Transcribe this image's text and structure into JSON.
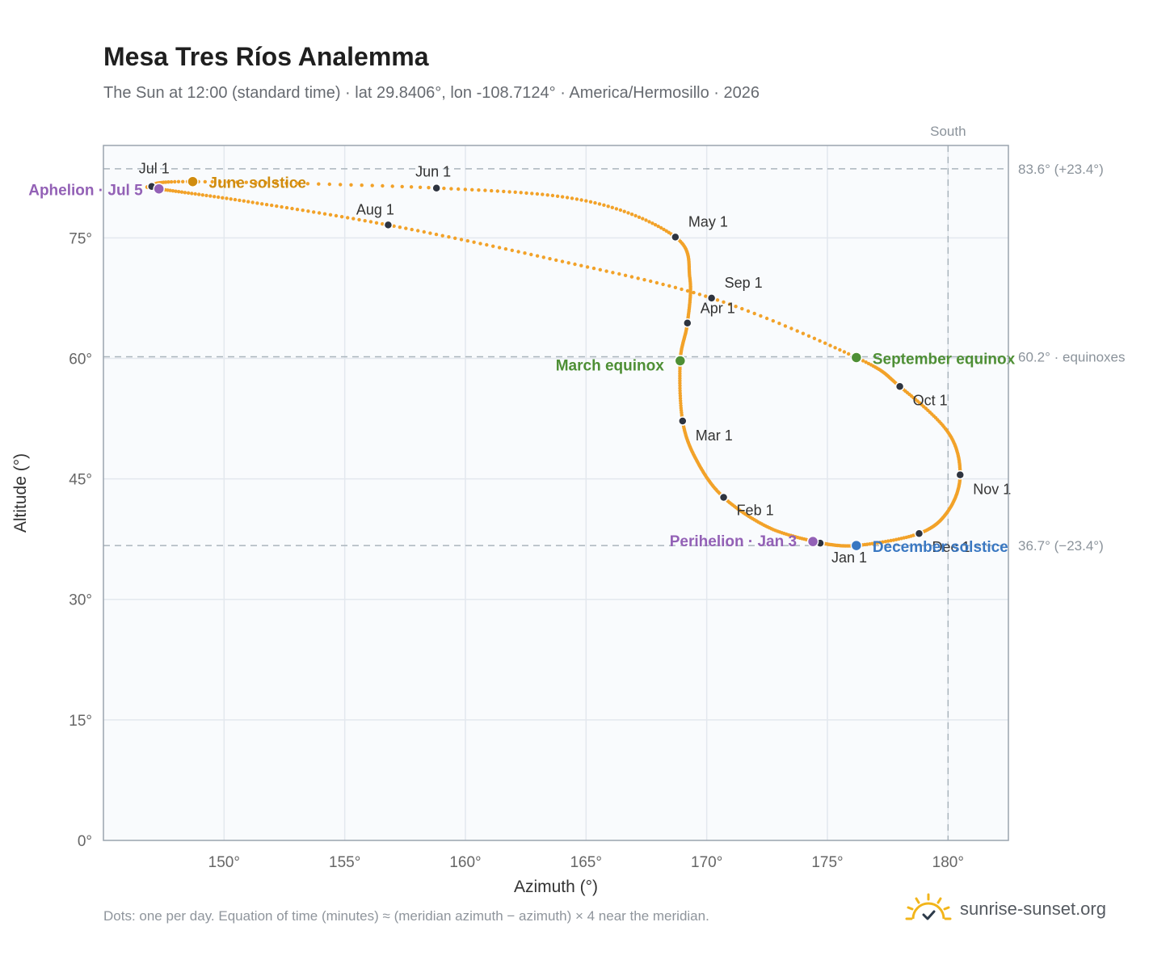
{
  "title": "Mesa Tres Ríos Analemma",
  "subtitle": "The Sun at 12:00 (standard time) · lat 29.8406°, lon -108.7124° · America/Hermosillo · 2026",
  "footnote": "Dots: one per day. Equation of time (minutes) ≈ (meridian azimuth − azimuth) × 4 near the meridian.",
  "brand": {
    "name": "sunrise-sunset.org",
    "icon": "sun-logo-icon"
  },
  "colors": {
    "curve": "#f2a229",
    "month_dot": "#2e3440",
    "equinox": "#4e8f35",
    "june_solstice": "#d08c0e",
    "december_solstice": "#3a78c2",
    "apsis": "#9361b6",
    "plot_bg": "#f9fbfd",
    "grid": "#e3e8ee",
    "ref_line": "#aab5bd"
  },
  "chart_data": {
    "type": "scatter",
    "xlabel": "Azimuth (°)",
    "ylabel": "Altitude (°)",
    "xlim": [
      145,
      182.5
    ],
    "ylim": [
      0,
      86.5
    ],
    "x_ticks": [
      {
        "value": 150,
        "label": "150°"
      },
      {
        "value": 155,
        "label": "155°"
      },
      {
        "value": 160,
        "label": "160°"
      },
      {
        "value": 165,
        "label": "165°"
      },
      {
        "value": 170,
        "label": "170°"
      },
      {
        "value": 175,
        "label": "175°"
      },
      {
        "value": 180,
        "label": "180°"
      }
    ],
    "y_ticks": [
      {
        "value": 0,
        "label": "0°"
      },
      {
        "value": 15,
        "label": "15°"
      },
      {
        "value": 30,
        "label": "30°"
      },
      {
        "value": 45,
        "label": "45°"
      },
      {
        "value": 60,
        "label": "60°"
      },
      {
        "value": 75,
        "label": "75°"
      }
    ],
    "grid": true,
    "meridian": {
      "azimuth": 180,
      "label": "South"
    },
    "reference_lines": [
      {
        "altitude": 83.6,
        "label": "83.6° (+23.4°)"
      },
      {
        "altitude": 60.2,
        "label": "60.2° · equinoxes"
      },
      {
        "altitude": 36.7,
        "label": "36.7° (−23.4°)"
      }
    ],
    "daily_path": [
      {
        "date": "Jan 1",
        "az": 174.7,
        "alt": 37.0
      },
      {
        "date": "Jan 15",
        "az": 172.6,
        "alt": 38.9
      },
      {
        "date": "Feb 1",
        "az": 170.7,
        "alt": 42.7
      },
      {
        "date": "Feb 15",
        "az": 169.6,
        "alt": 47.2
      },
      {
        "date": "Mar 1",
        "az": 169.0,
        "alt": 52.2
      },
      {
        "date": "Mar 20",
        "az": 168.9,
        "alt": 59.7
      },
      {
        "date": "Apr 1",
        "az": 169.2,
        "alt": 64.4
      },
      {
        "date": "Apr 15",
        "az": 169.3,
        "alt": 70.0
      },
      {
        "date": "May 1",
        "az": 168.7,
        "alt": 75.1
      },
      {
        "date": "May 15",
        "az": 165.0,
        "alt": 79.6
      },
      {
        "date": "Jun 1",
        "az": 158.8,
        "alt": 81.2
      },
      {
        "date": "Jun 21",
        "az": 148.7,
        "alt": 82.0
      },
      {
        "date": "Jul 1",
        "az": 147.0,
        "alt": 81.4
      },
      {
        "date": "Jul 5",
        "az": 147.3,
        "alt": 81.1
      },
      {
        "date": "Jul 15",
        "az": 151.0,
        "alt": 79.5
      },
      {
        "date": "Aug 1",
        "az": 156.8,
        "alt": 76.6
      },
      {
        "date": "Aug 15",
        "az": 163.5,
        "alt": 72.4
      },
      {
        "date": "Sep 1",
        "az": 170.2,
        "alt": 67.5
      },
      {
        "date": "Sep 22",
        "az": 176.2,
        "alt": 60.1
      },
      {
        "date": "Oct 1",
        "az": 178.0,
        "alt": 56.5
      },
      {
        "date": "Oct 15",
        "az": 180.0,
        "alt": 50.8
      },
      {
        "date": "Nov 1",
        "az": 180.5,
        "alt": 45.5
      },
      {
        "date": "Nov 15",
        "az": 180.0,
        "alt": 41.0
      },
      {
        "date": "Dec 1",
        "az": 178.8,
        "alt": 38.2
      },
      {
        "date": "Dec 21",
        "az": 176.2,
        "alt": 36.7
      },
      {
        "date": "Jan 1",
        "az": 174.7,
        "alt": 37.0
      }
    ],
    "month_markers": [
      {
        "label": "Jan 1",
        "az": 174.7,
        "alt": 37.0
      },
      {
        "label": "Feb 1",
        "az": 170.7,
        "alt": 42.7
      },
      {
        "label": "Mar 1",
        "az": 169.0,
        "alt": 52.2
      },
      {
        "label": "Apr 1",
        "az": 169.2,
        "alt": 64.4
      },
      {
        "label": "May 1",
        "az": 168.7,
        "alt": 75.1
      },
      {
        "label": "Jun 1",
        "az": 158.8,
        "alt": 81.2
      },
      {
        "label": "Jul 1",
        "az": 147.0,
        "alt": 81.4
      },
      {
        "label": "Aug 1",
        "az": 156.8,
        "alt": 76.6
      },
      {
        "label": "Sep 1",
        "az": 170.2,
        "alt": 67.5
      },
      {
        "label": "Oct 1",
        "az": 178.0,
        "alt": 56.5
      },
      {
        "label": "Nov 1",
        "az": 180.5,
        "alt": 45.5
      },
      {
        "label": "Dec 1",
        "az": 178.8,
        "alt": 38.2
      }
    ],
    "events": [
      {
        "label": "March equinox",
        "az": 168.9,
        "alt": 59.7,
        "kind": "equinox"
      },
      {
        "label": "September equinox",
        "az": 176.2,
        "alt": 60.1,
        "kind": "equinox"
      },
      {
        "label": "June solstice",
        "az": 148.7,
        "alt": 82.0,
        "kind": "june_solstice"
      },
      {
        "label": "December solstice",
        "az": 176.2,
        "alt": 36.7,
        "kind": "december_solstice"
      },
      {
        "label": "Perihelion · Jan 3",
        "az": 174.4,
        "alt": 37.2,
        "kind": "apsis"
      },
      {
        "label": "Aphelion · Jul 5",
        "az": 147.3,
        "alt": 81.1,
        "kind": "apsis"
      }
    ]
  }
}
